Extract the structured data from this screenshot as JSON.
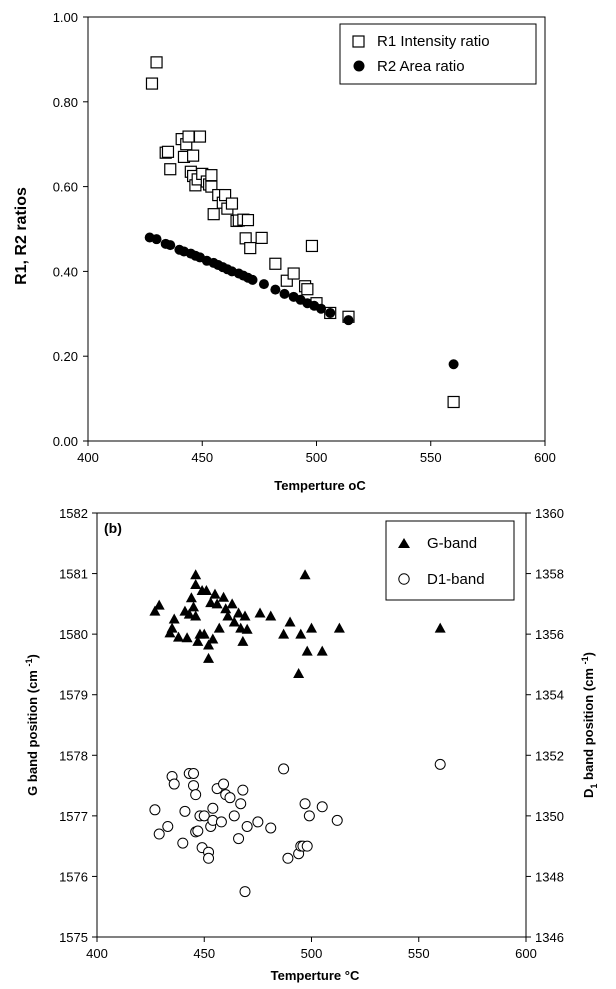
{
  "chart_data": [
    {
      "type": "scatter",
      "xlabel": "Temperture",
      "xlabel_unit": "oC",
      "ylabel": "R1, R2 ratios",
      "xlim": [
        400,
        600
      ],
      "ylim": [
        0,
        1
      ],
      "x_ticks": [
        "400",
        "450",
        "500",
        "550",
        "600"
      ],
      "y_ticks": [
        "0.00",
        "0.20",
        "0.40",
        "0.60",
        "0.80",
        "1.00"
      ],
      "grid": false,
      "legend_position": "top-right",
      "series": [
        {
          "name": "R1 Intensity ratio",
          "marker": "open-square",
          "points": [
            [
              428,
              0.843
            ],
            [
              430,
              0.893
            ],
            [
              434,
              0.68
            ],
            [
              435,
              0.682
            ],
            [
              436,
              0.641
            ],
            [
              441,
              0.712
            ],
            [
              442,
              0.67
            ],
            [
              443,
              0.7
            ],
            [
              444,
              0.718
            ],
            [
              445,
              0.635
            ],
            [
              446,
              0.673
            ],
            [
              446,
              0.625
            ],
            [
              447,
              0.603
            ],
            [
              448,
              0.617
            ],
            [
              449,
              0.718
            ],
            [
              450,
              0.63
            ],
            [
              452,
              0.612
            ],
            [
              453,
              0.605
            ],
            [
              454,
              0.6
            ],
            [
              454,
              0.627
            ],
            [
              455,
              0.535
            ],
            [
              457,
              0.58
            ],
            [
              459,
              0.562
            ],
            [
              460,
              0.58
            ],
            [
              461,
              0.548
            ],
            [
              463,
              0.56
            ],
            [
              465,
              0.519
            ],
            [
              466,
              0.52
            ],
            [
              468,
              0.522
            ],
            [
              469,
              0.478
            ],
            [
              470,
              0.521
            ],
            [
              471,
              0.455
            ],
            [
              476,
              0.479
            ],
            [
              482,
              0.418
            ],
            [
              487,
              0.378
            ],
            [
              490,
              0.395
            ],
            [
              495,
              0.365
            ],
            [
              496,
              0.358
            ],
            [
              498,
              0.46
            ],
            [
              500,
              0.325
            ],
            [
              506,
              0.302
            ],
            [
              514,
              0.293
            ],
            [
              560,
              0.092
            ]
          ]
        },
        {
          "name": "R2 Area ratio",
          "marker": "filled-circle",
          "points": [
            [
              427,
              0.48
            ],
            [
              430,
              0.476
            ],
            [
              434,
              0.465
            ],
            [
              436,
              0.462
            ],
            [
              440,
              0.451
            ],
            [
              442,
              0.447
            ],
            [
              445,
              0.442
            ],
            [
              447,
              0.437
            ],
            [
              449,
              0.433
            ],
            [
              452,
              0.425
            ],
            [
              455,
              0.42
            ],
            [
              457,
              0.415
            ],
            [
              459,
              0.41
            ],
            [
              461,
              0.405
            ],
            [
              463,
              0.4
            ],
            [
              466,
              0.395
            ],
            [
              468,
              0.39
            ],
            [
              470,
              0.385
            ],
            [
              472,
              0.38
            ],
            [
              477,
              0.37
            ],
            [
              482,
              0.357
            ],
            [
              486,
              0.347
            ],
            [
              490,
              0.34
            ],
            [
              493,
              0.333
            ],
            [
              496,
              0.325
            ],
            [
              499,
              0.319
            ],
            [
              502,
              0.312
            ],
            [
              506,
              0.302
            ],
            [
              514,
              0.285
            ],
            [
              560,
              0.181
            ]
          ]
        }
      ]
    },
    {
      "type": "scatter",
      "panel_label": "(b)",
      "xlabel": "Temperture",
      "xlabel_unit": "°C",
      "ylabel_left": "G band position",
      "ylabel_left_unit": "(cm ",
      "ylabel_left_sup": "-1",
      "ylabel_left_close": ")",
      "ylabel_right_pre": "D",
      "ylabel_right_sub": "1",
      "ylabel_right_post": " band position",
      "ylabel_right_unit": "(cm ",
      "ylabel_right_sup": "-1",
      "ylabel_right_close": ")",
      "xlim": [
        400,
        600
      ],
      "ylim_left": [
        1575,
        1582
      ],
      "ylim_right": [
        1346,
        1360
      ],
      "x_ticks": [
        "400",
        "450",
        "500",
        "550",
        "600"
      ],
      "y_ticks_left": [
        "1575",
        "1576",
        "1577",
        "1578",
        "1579",
        "1580",
        "1581",
        "1582"
      ],
      "y_ticks_right": [
        "1346",
        "1348",
        "1350",
        "1352",
        "1354",
        "1356",
        "1358",
        "1360"
      ],
      "grid": false,
      "legend_position": "top-right",
      "series": [
        {
          "name": "G-band",
          "marker": "filled-triangle",
          "axis": "left",
          "points": [
            [
              427,
              1580.38
            ],
            [
              429,
              1580.48
            ],
            [
              434,
              1580.02
            ],
            [
              435,
              1580.1
            ],
            [
              436,
              1580.25
            ],
            [
              438,
              1579.95
            ],
            [
              441,
              1580.38
            ],
            [
              442,
              1579.94
            ],
            [
              443,
              1580.33
            ],
            [
              444,
              1580.6
            ],
            [
              445,
              1580.45
            ],
            [
              446,
              1580.82
            ],
            [
              446,
              1580.98
            ],
            [
              446,
              1580.3
            ],
            [
              447,
              1579.88
            ],
            [
              448,
              1580.0
            ],
            [
              449,
              1580.72
            ],
            [
              450,
              1580.0
            ],
            [
              451,
              1580.72
            ],
            [
              452,
              1579.82
            ],
            [
              452,
              1579.6
            ],
            [
              453,
              1580.52
            ],
            [
              454,
              1579.92
            ],
            [
              455,
              1580.66
            ],
            [
              456,
              1580.5
            ],
            [
              457,
              1580.1
            ],
            [
              459,
              1580.61
            ],
            [
              460,
              1580.42
            ],
            [
              461,
              1580.3
            ],
            [
              463,
              1580.5
            ],
            [
              464,
              1580.2
            ],
            [
              466,
              1580.35
            ],
            [
              467,
              1580.1
            ],
            [
              468,
              1579.88
            ],
            [
              469,
              1580.3
            ],
            [
              470,
              1580.08
            ],
            [
              476,
              1580.35
            ],
            [
              481,
              1580.3
            ],
            [
              487,
              1580.0
            ],
            [
              490,
              1580.2
            ],
            [
              494,
              1579.35
            ],
            [
              495,
              1580.0
            ],
            [
              497,
              1580.98
            ],
            [
              498,
              1579.72
            ],
            [
              500,
              1580.1
            ],
            [
              505,
              1579.72
            ],
            [
              513,
              1580.1
            ],
            [
              560,
              1580.1
            ]
          ]
        },
        {
          "name": "D1-band",
          "marker": "open-circle",
          "axis": "right",
          "points": [
            [
              427,
              1350.2
            ],
            [
              429,
              1349.4
            ],
            [
              433,
              1349.65
            ],
            [
              435,
              1351.3
            ],
            [
              436,
              1351.05
            ],
            [
              440,
              1349.1
            ],
            [
              441,
              1350.15
            ],
            [
              443,
              1351.4
            ],
            [
              445,
              1351.4
            ],
            [
              445,
              1351.0
            ],
            [
              446,
              1349.47
            ],
            [
              446,
              1350.7
            ],
            [
              447,
              1349.5
            ],
            [
              448,
              1350.0
            ],
            [
              449,
              1348.95
            ],
            [
              450,
              1350.0
            ],
            [
              452,
              1348.8
            ],
            [
              452,
              1348.6
            ],
            [
              453,
              1349.65
            ],
            [
              454,
              1349.85
            ],
            [
              454,
              1350.25
            ],
            [
              456,
              1350.9
            ],
            [
              458,
              1349.8
            ],
            [
              459,
              1351.05
            ],
            [
              460,
              1350.7
            ],
            [
              462,
              1350.6
            ],
            [
              464,
              1350.0
            ],
            [
              466,
              1349.25
            ],
            [
              467,
              1350.4
            ],
            [
              468,
              1350.85
            ],
            [
              469,
              1347.5
            ],
            [
              470,
              1349.65
            ],
            [
              475,
              1349.8
            ],
            [
              481,
              1349.6
            ],
            [
              487,
              1351.55
            ],
            [
              489,
              1348.6
            ],
            [
              494,
              1348.75
            ],
            [
              495,
              1349.0
            ],
            [
              496,
              1349.0
            ],
            [
              497,
              1350.4
            ],
            [
              498,
              1349.0
            ],
            [
              499,
              1350.0
            ],
            [
              505,
              1350.3
            ],
            [
              512,
              1349.85
            ],
            [
              560,
              1351.7
            ]
          ]
        }
      ]
    }
  ]
}
